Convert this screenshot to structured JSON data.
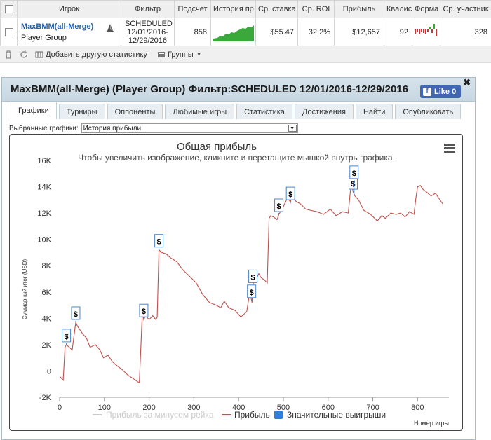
{
  "table": {
    "headers": [
      "Игрок",
      "Фильтр",
      "Подсчет",
      "История пр",
      "Ср. ставка",
      "Ср. ROI",
      "Прибыль",
      "Квалис",
      "Форма",
      "Ср. участник"
    ],
    "row": {
      "player_name": "MaxBMM(all-Merge)",
      "player_group": "Player Group",
      "filter_line1": "SCHEDULED",
      "filter_line2": "12/01/2016-",
      "filter_line3": "12/29/2016",
      "count": "858",
      "avg_stake": "$55.47",
      "avg_roi": "32.2%",
      "profit": "$12,657",
      "qualis": "92",
      "avg_participants": "328"
    }
  },
  "toolbar": {
    "add_stats": "Добавить другую статистику",
    "groups": "Группы"
  },
  "dialog": {
    "title": "MaxBMM(all-Merge) (Player Group) Фильтр:SCHEDULED 12/01/2016-12/29/2016",
    "like_label": "Like 0",
    "tabs": [
      "Графики",
      "Турниры",
      "Оппоненты",
      "Любимые игры",
      "Статистика",
      "Достижения",
      "Найти",
      "Опубликовать"
    ],
    "select_label": "Выбранные графики:",
    "select_value": "История прибыли"
  },
  "chart_data": {
    "type": "line",
    "title": "Общая прибыль",
    "subtitle": "Чтобы увеличить изображение, кликните и перетащите мышкой внутрь графика.",
    "xlabel": "Номер игры",
    "ylabel": "Суммарный итог (USD)",
    "xlim": [
      0,
      870
    ],
    "ylim": [
      -2000,
      16000
    ],
    "x_ticks": [
      0,
      100,
      200,
      300,
      400,
      500,
      600,
      700,
      800
    ],
    "y_ticks": [
      -2000,
      0,
      2000,
      4000,
      6000,
      8000,
      10000,
      12000,
      14000,
      16000
    ],
    "y_tick_labels": [
      "-2K",
      "0",
      "2K",
      "4K",
      "6K",
      "8K",
      "10K",
      "12K",
      "14K",
      "16K"
    ],
    "legend": [
      "Прибыль за минусом рейка",
      "Прибыль",
      "Значительные выигрыши"
    ],
    "series": [
      {
        "name": "Прибыль",
        "color": "#c0504d",
        "x": [
          0,
          8,
          12,
          15,
          28,
          36,
          40,
          52,
          60,
          68,
          80,
          90,
          98,
          108,
          118,
          128,
          140,
          152,
          165,
          178,
          185,
          188,
          192,
          200,
          208,
          215,
          218,
          222,
          228,
          238,
          248,
          262,
          275,
          290,
          305,
          320,
          335,
          350,
          360,
          368,
          378,
          392,
          405,
          418,
          425,
          430,
          432,
          436,
          440,
          445,
          450,
          458,
          464,
          468,
          472,
          478,
          486,
          490,
          500,
          510,
          516,
          520,
          528,
          538,
          550,
          562,
          575,
          590,
          605,
          618,
          632,
          645,
          652,
          656,
          660,
          668,
          680,
          695,
          710,
          720,
          728,
          740,
          752,
          762,
          772,
          782,
          792,
          796,
          800,
          806,
          812,
          820,
          830,
          840,
          848,
          856
        ],
        "y": [
          -400,
          -700,
          1800,
          2000,
          1600,
          3700,
          3400,
          2800,
          2500,
          1800,
          2000,
          1600,
          1000,
          1200,
          700,
          400,
          100,
          -300,
          -600,
          -900,
          4500,
          3900,
          4200,
          3900,
          4200,
          3900,
          4100,
          9200,
          9000,
          8900,
          8600,
          8300,
          7700,
          7200,
          6700,
          5800,
          5200,
          5000,
          4800,
          5300,
          4800,
          4600,
          4100,
          4500,
          6000,
          5200,
          6500,
          7200,
          7000,
          7400,
          7100,
          6900,
          6700,
          11600,
          11800,
          11700,
          11500,
          11900,
          12500,
          13200,
          12800,
          13500,
          12900,
          12700,
          12300,
          12200,
          12100,
          11900,
          12300,
          11800,
          12100,
          12000,
          14400,
          13600,
          13300,
          13000,
          12200,
          11900,
          11400,
          11800,
          11600,
          12000,
          11900,
          12000,
          11700,
          12100,
          11900,
          13100,
          14000,
          14100,
          13800,
          13600,
          13300,
          13500,
          13100,
          12700
        ]
      }
    ],
    "big_wins_x": [
      15,
      36,
      188,
      222,
      429,
      432,
      490,
      516,
      656,
      658
    ]
  }
}
